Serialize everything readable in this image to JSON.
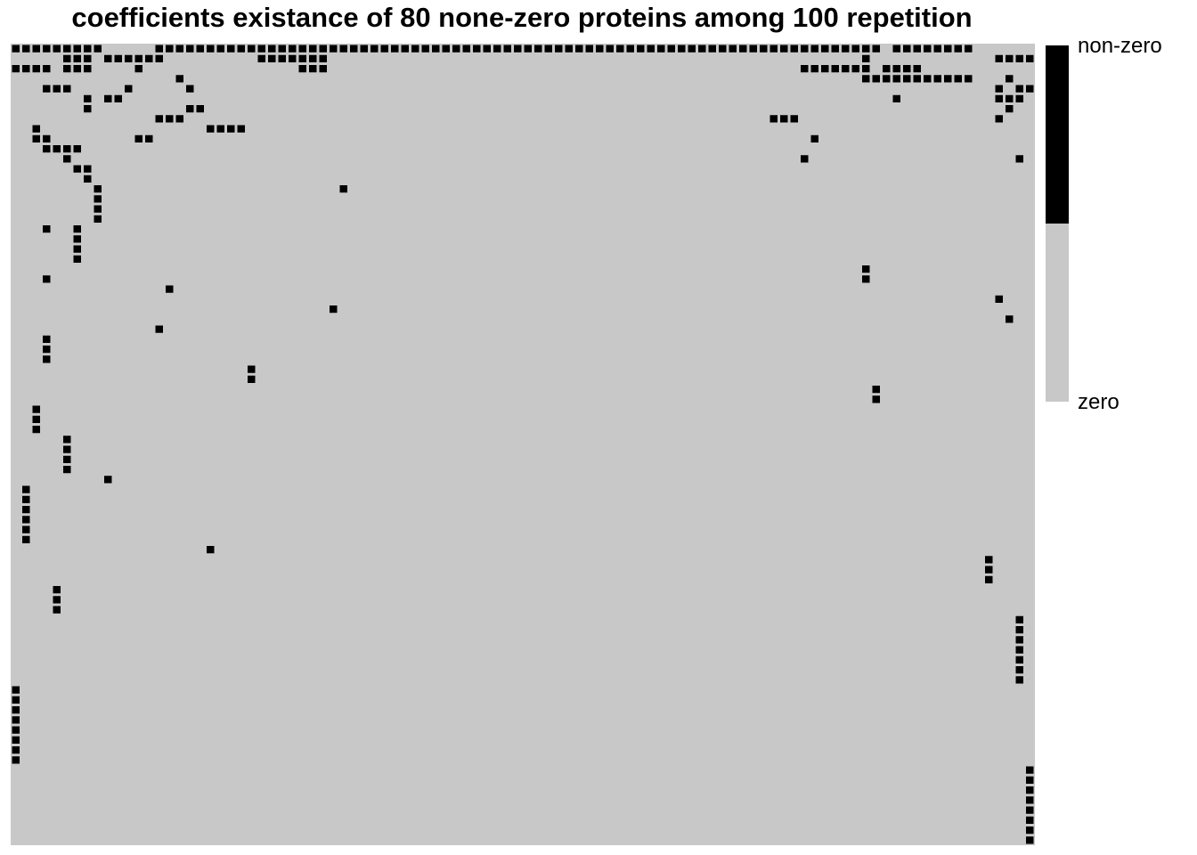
{
  "chart_data": {
    "type": "heatmap",
    "title": "coefficients existance of 80 none-zero proteins among 100 repetition",
    "rows": 80,
    "cols": 100,
    "color_zero": "#c8c8c8",
    "color_nonzero": "#000000",
    "legend": {
      "placement": "right",
      "entries": [
        {
          "label": "non-zero",
          "color": "#000000"
        },
        {
          "label": "zero",
          "color": "#c8c8c8"
        }
      ]
    },
    "nonzero_cells": [
      [
        0,
        0
      ],
      [
        0,
        1
      ],
      [
        0,
        2
      ],
      [
        0,
        3
      ],
      [
        0,
        4
      ],
      [
        0,
        5
      ],
      [
        0,
        6
      ],
      [
        0,
        7
      ],
      [
        0,
        8
      ],
      [
        0,
        14
      ],
      [
        0,
        15
      ],
      [
        0,
        16
      ],
      [
        0,
        17
      ],
      [
        0,
        18
      ],
      [
        0,
        19
      ],
      [
        0,
        20
      ],
      [
        0,
        21
      ],
      [
        0,
        22
      ],
      [
        0,
        23
      ],
      [
        0,
        24
      ],
      [
        0,
        25
      ],
      [
        0,
        26
      ],
      [
        0,
        27
      ],
      [
        0,
        28
      ],
      [
        0,
        29
      ],
      [
        0,
        30
      ],
      [
        0,
        31
      ],
      [
        0,
        32
      ],
      [
        0,
        33
      ],
      [
        0,
        34
      ],
      [
        0,
        35
      ],
      [
        0,
        36
      ],
      [
        0,
        37
      ],
      [
        0,
        38
      ],
      [
        0,
        39
      ],
      [
        0,
        40
      ],
      [
        0,
        41
      ],
      [
        0,
        42
      ],
      [
        0,
        43
      ],
      [
        0,
        44
      ],
      [
        0,
        45
      ],
      [
        0,
        46
      ],
      [
        0,
        47
      ],
      [
        0,
        48
      ],
      [
        0,
        49
      ],
      [
        0,
        50
      ],
      [
        0,
        51
      ],
      [
        0,
        52
      ],
      [
        0,
        53
      ],
      [
        0,
        54
      ],
      [
        0,
        55
      ],
      [
        0,
        56
      ],
      [
        0,
        57
      ],
      [
        0,
        58
      ],
      [
        0,
        59
      ],
      [
        0,
        60
      ],
      [
        0,
        61
      ],
      [
        0,
        62
      ],
      [
        0,
        63
      ],
      [
        0,
        64
      ],
      [
        0,
        65
      ],
      [
        0,
        66
      ],
      [
        0,
        67
      ],
      [
        0,
        68
      ],
      [
        0,
        69
      ],
      [
        0,
        70
      ],
      [
        0,
        71
      ],
      [
        0,
        72
      ],
      [
        0,
        73
      ],
      [
        0,
        74
      ],
      [
        0,
        75
      ],
      [
        0,
        76
      ],
      [
        0,
        77
      ],
      [
        0,
        78
      ],
      [
        0,
        79
      ],
      [
        0,
        80
      ],
      [
        0,
        81
      ],
      [
        0,
        82
      ],
      [
        0,
        83
      ],
      [
        0,
        84
      ],
      [
        0,
        86
      ],
      [
        0,
        87
      ],
      [
        0,
        88
      ],
      [
        0,
        89
      ],
      [
        0,
        90
      ],
      [
        0,
        91
      ],
      [
        0,
        92
      ],
      [
        0,
        93
      ],
      [
        1,
        5
      ],
      [
        1,
        6
      ],
      [
        1,
        7
      ],
      [
        1,
        9
      ],
      [
        1,
        10
      ],
      [
        1,
        11
      ],
      [
        1,
        12
      ],
      [
        1,
        13
      ],
      [
        1,
        14
      ],
      [
        1,
        24
      ],
      [
        1,
        25
      ],
      [
        1,
        26
      ],
      [
        1,
        27
      ],
      [
        1,
        28
      ],
      [
        1,
        29
      ],
      [
        1,
        30
      ],
      [
        1,
        83
      ],
      [
        1,
        96
      ],
      [
        1,
        97
      ],
      [
        1,
        98
      ],
      [
        1,
        99
      ],
      [
        2,
        0
      ],
      [
        2,
        1
      ],
      [
        2,
        2
      ],
      [
        2,
        3
      ],
      [
        2,
        5
      ],
      [
        2,
        6
      ],
      [
        2,
        7
      ],
      [
        2,
        12
      ],
      [
        2,
        28
      ],
      [
        2,
        29
      ],
      [
        2,
        30
      ],
      [
        2,
        77
      ],
      [
        2,
        78
      ],
      [
        2,
        79
      ],
      [
        2,
        80
      ],
      [
        2,
        81
      ],
      [
        2,
        82
      ],
      [
        2,
        83
      ],
      [
        2,
        85
      ],
      [
        2,
        86
      ],
      [
        2,
        87
      ],
      [
        2,
        88
      ],
      [
        3,
        16
      ],
      [
        3,
        83
      ],
      [
        3,
        84
      ],
      [
        3,
        85
      ],
      [
        3,
        86
      ],
      [
        3,
        87
      ],
      [
        3,
        88
      ],
      [
        3,
        89
      ],
      [
        3,
        90
      ],
      [
        3,
        91
      ],
      [
        3,
        92
      ],
      [
        3,
        93
      ],
      [
        3,
        97
      ],
      [
        4,
        3
      ],
      [
        4,
        4
      ],
      [
        4,
        5
      ],
      [
        4,
        11
      ],
      [
        4,
        17
      ],
      [
        4,
        96
      ],
      [
        4,
        98
      ],
      [
        4,
        99
      ],
      [
        5,
        7
      ],
      [
        5,
        9
      ],
      [
        5,
        10
      ],
      [
        5,
        86
      ],
      [
        5,
        96
      ],
      [
        5,
        97
      ],
      [
        5,
        98
      ],
      [
        6,
        7
      ],
      [
        6,
        17
      ],
      [
        6,
        18
      ],
      [
        6,
        97
      ],
      [
        7,
        14
      ],
      [
        7,
        15
      ],
      [
        7,
        16
      ],
      [
        7,
        74
      ],
      [
        7,
        75
      ],
      [
        7,
        76
      ],
      [
        7,
        96
      ],
      [
        8,
        2
      ],
      [
        8,
        19
      ],
      [
        8,
        20
      ],
      [
        8,
        21
      ],
      [
        8,
        22
      ],
      [
        9,
        2
      ],
      [
        9,
        3
      ],
      [
        9,
        12
      ],
      [
        9,
        13
      ],
      [
        9,
        78
      ],
      [
        10,
        3
      ],
      [
        10,
        4
      ],
      [
        10,
        5
      ],
      [
        10,
        6
      ],
      [
        11,
        5
      ],
      [
        11,
        77
      ],
      [
        11,
        98
      ],
      [
        12,
        6
      ],
      [
        12,
        7
      ],
      [
        13,
        7
      ],
      [
        14,
        8
      ],
      [
        14,
        32
      ],
      [
        15,
        8
      ],
      [
        16,
        8
      ],
      [
        17,
        8
      ],
      [
        18,
        3
      ],
      [
        18,
        6
      ],
      [
        19,
        6
      ],
      [
        20,
        6
      ],
      [
        21,
        6
      ],
      [
        22,
        83
      ],
      [
        23,
        3
      ],
      [
        23,
        83
      ],
      [
        24,
        15
      ],
      [
        25,
        96
      ],
      [
        26,
        31
      ],
      [
        27,
        97
      ],
      [
        28,
        14
      ],
      [
        29,
        3
      ],
      [
        30,
        3
      ],
      [
        31,
        3
      ],
      [
        32,
        23
      ],
      [
        33,
        23
      ],
      [
        34,
        84
      ],
      [
        35,
        84
      ],
      [
        36,
        2
      ],
      [
        37,
        2
      ],
      [
        38,
        2
      ],
      [
        39,
        5
      ],
      [
        40,
        5
      ],
      [
        41,
        5
      ],
      [
        42,
        5
      ],
      [
        43,
        9
      ],
      [
        44,
        1
      ],
      [
        45,
        1
      ],
      [
        46,
        1
      ],
      [
        47,
        1
      ],
      [
        48,
        1
      ],
      [
        49,
        1
      ],
      [
        50,
        19
      ],
      [
        51,
        95
      ],
      [
        52,
        95
      ],
      [
        53,
        95
      ],
      [
        54,
        4
      ],
      [
        55,
        4
      ],
      [
        56,
        4
      ],
      [
        57,
        98
      ],
      [
        58,
        98
      ],
      [
        59,
        98
      ],
      [
        60,
        98
      ],
      [
        61,
        98
      ],
      [
        62,
        98
      ],
      [
        63,
        98
      ],
      [
        64,
        0
      ],
      [
        65,
        0
      ],
      [
        66,
        0
      ],
      [
        67,
        0
      ],
      [
        68,
        0
      ],
      [
        69,
        0
      ],
      [
        70,
        0
      ],
      [
        71,
        0
      ],
      [
        72,
        99
      ],
      [
        73,
        99
      ],
      [
        74,
        99
      ],
      [
        75,
        99
      ],
      [
        76,
        99
      ],
      [
        77,
        99
      ],
      [
        78,
        99
      ],
      [
        79,
        99
      ]
    ]
  }
}
